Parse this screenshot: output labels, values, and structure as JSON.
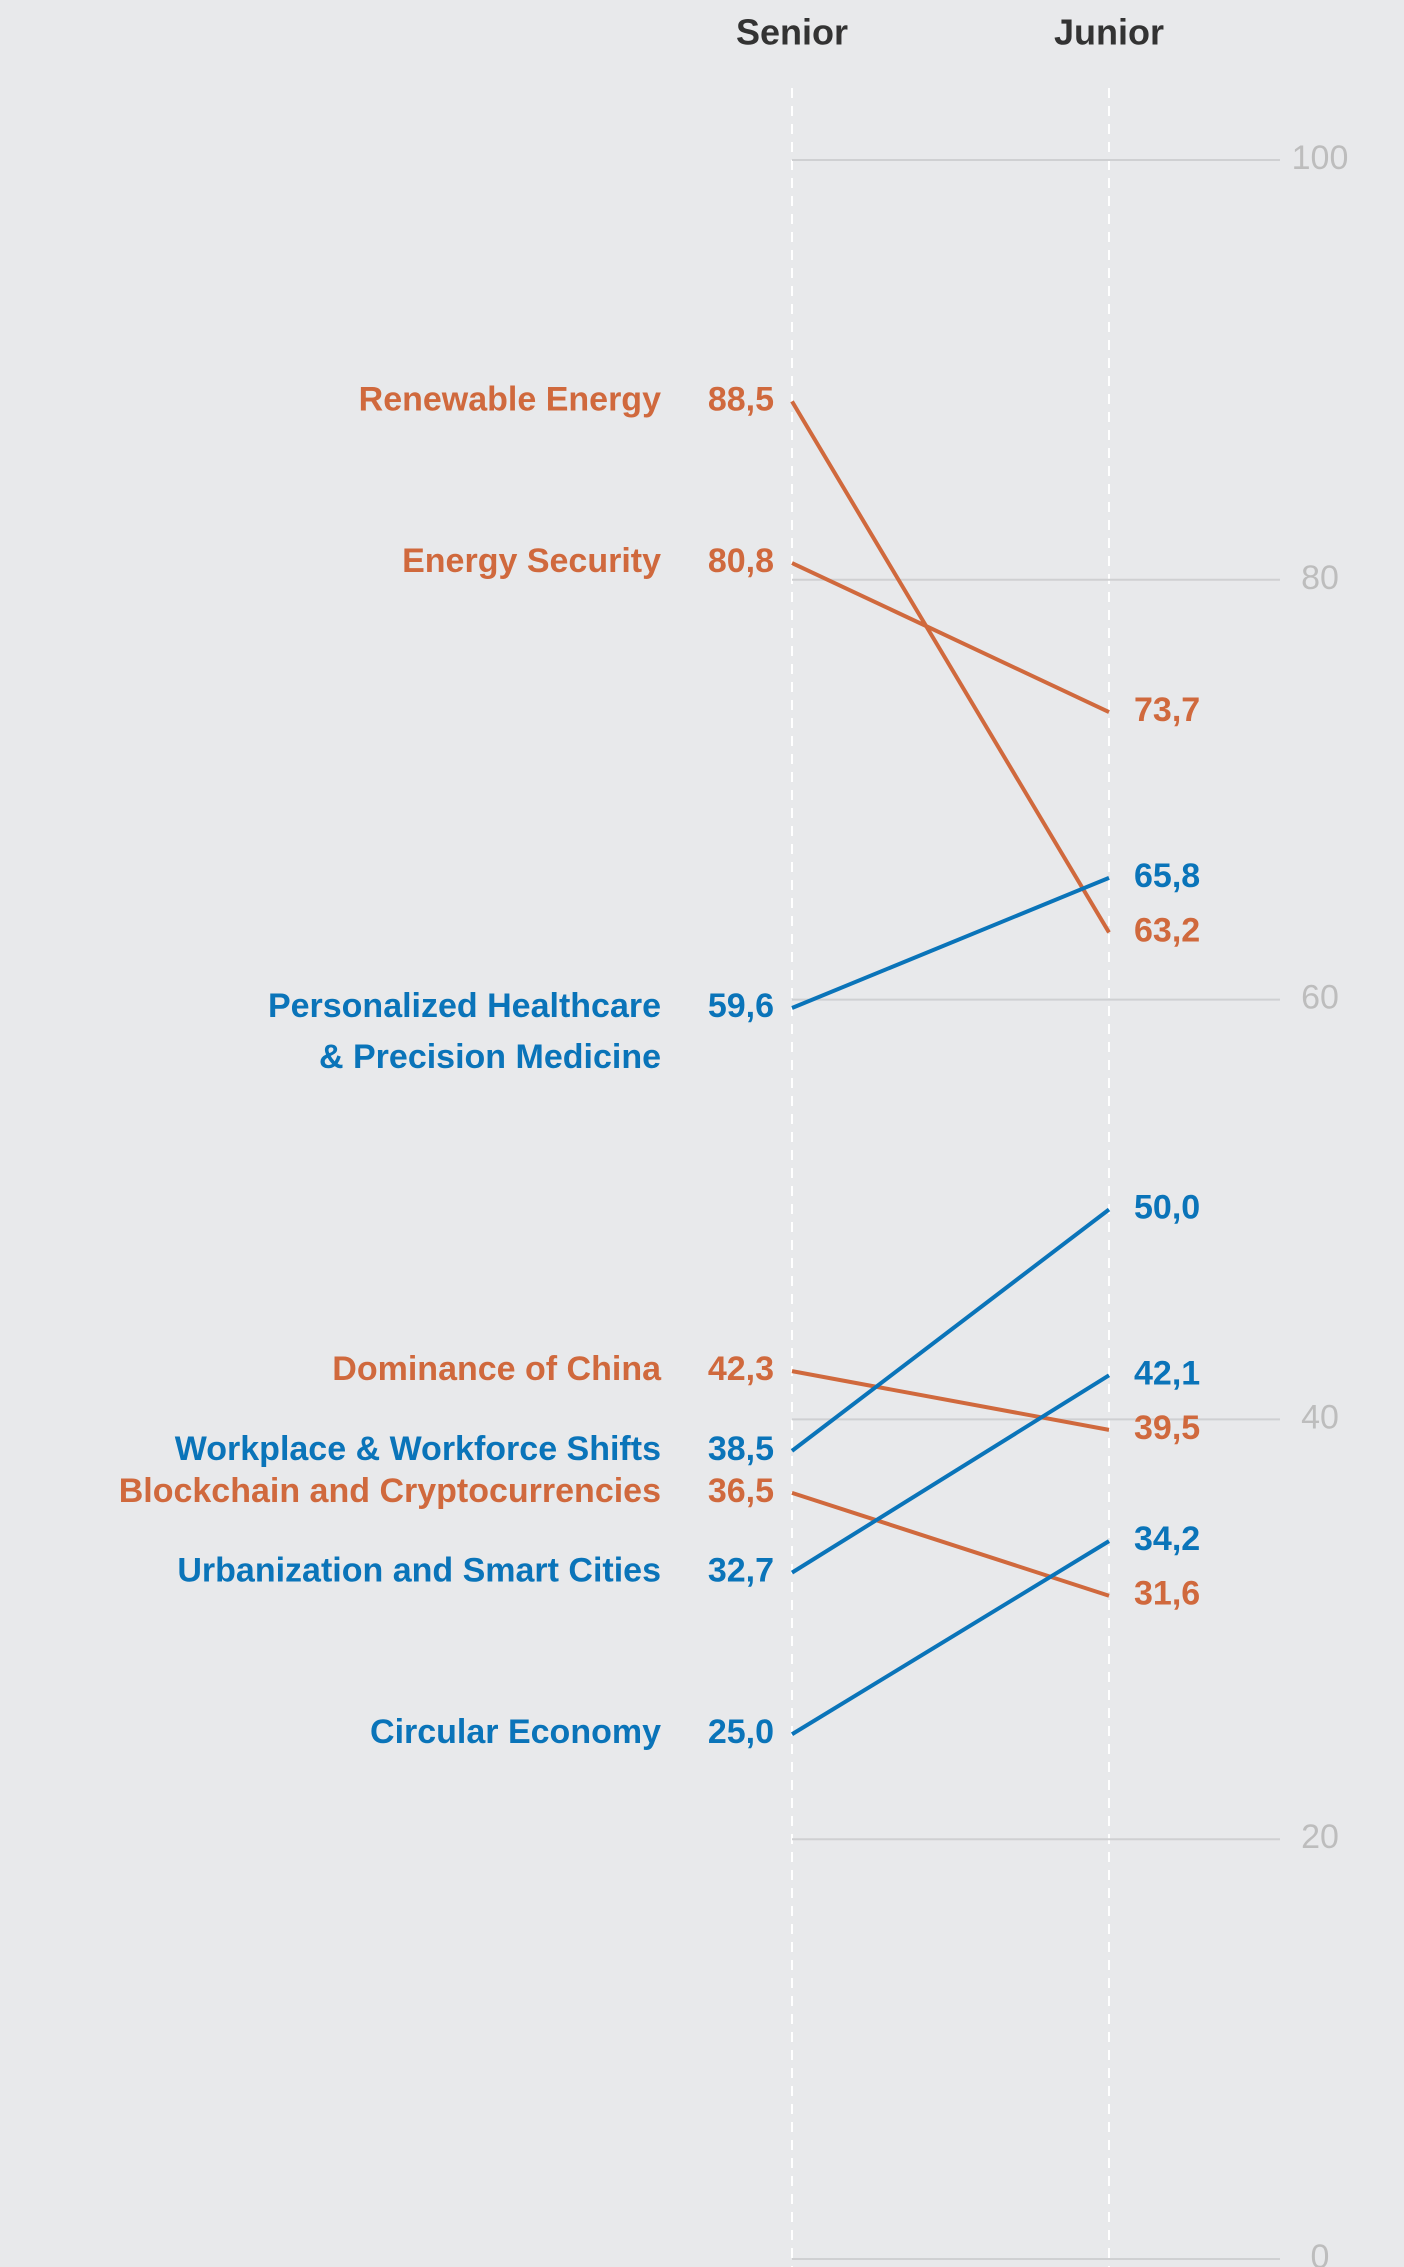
{
  "chart_data": {
    "type": "slope",
    "categories": [
      "Senior",
      "Junior"
    ],
    "ylim": [
      0,
      100
    ],
    "yticks": [
      0,
      20,
      40,
      60,
      80,
      100
    ],
    "grid": true,
    "series": [
      {
        "name": "Renewable Energy",
        "color": "#d0693d",
        "values": [
          88.5,
          63.2
        ],
        "value_labels": [
          "88,5",
          "63,2"
        ]
      },
      {
        "name": "Energy Security",
        "color": "#d0693d",
        "values": [
          80.8,
          73.7
        ],
        "value_labels": [
          "80,8",
          "73,7"
        ]
      },
      {
        "name": "Personalized Healthcare\n& Precision Medicine",
        "color": "#0a74b9",
        "values": [
          59.6,
          65.8
        ],
        "value_labels": [
          "59,6",
          "65,8"
        ]
      },
      {
        "name": "Dominance of China",
        "color": "#d0693d",
        "values": [
          42.3,
          39.5
        ],
        "value_labels": [
          "42,3",
          "39,5"
        ]
      },
      {
        "name": "Workplace & Workforce Shifts",
        "color": "#0a74b9",
        "values": [
          38.5,
          50.0
        ],
        "value_labels": [
          "38,5",
          "50,0"
        ]
      },
      {
        "name": "Blockchain and Cryptocurrencies",
        "color": "#d0693d",
        "values": [
          36.5,
          31.6
        ],
        "value_labels": [
          "36,5",
          "31,6"
        ]
      },
      {
        "name": "Urbanization and Smart Cities",
        "color": "#0a74b9",
        "values": [
          32.7,
          42.1
        ],
        "value_labels": [
          "32,7",
          "42,1"
        ]
      },
      {
        "name": "Circular Economy",
        "color": "#0a74b9",
        "values": [
          25.0,
          34.2
        ],
        "value_labels": [
          "25,0",
          "34,2"
        ]
      }
    ]
  }
}
